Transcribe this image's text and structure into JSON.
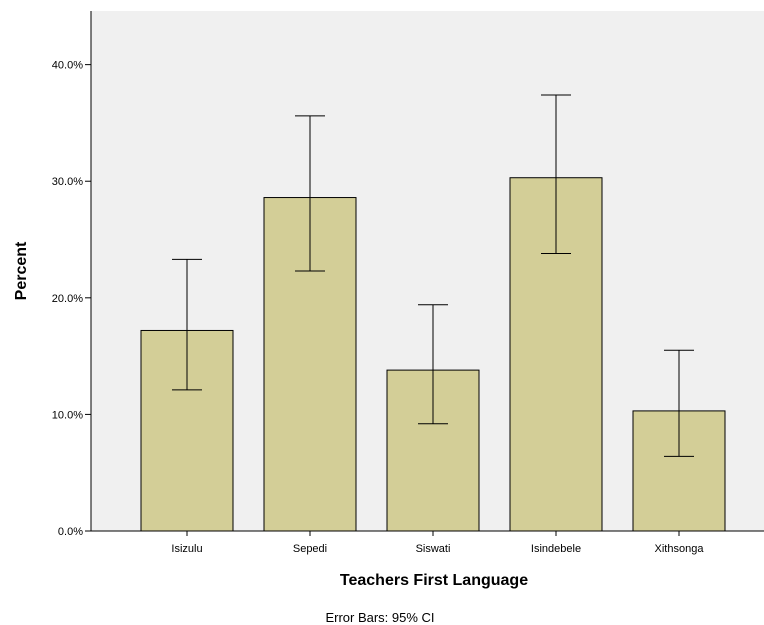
{
  "chart_data": {
    "type": "bar",
    "xlabel": "Teachers First Language",
    "ylabel": "Percent",
    "categories": [
      "Isizulu",
      "Sepedi",
      "Siswati",
      "Isindebele",
      "Xithsonga"
    ],
    "values": [
      17.2,
      28.6,
      13.8,
      30.3,
      10.3
    ],
    "error_low": [
      12.1,
      22.3,
      9.2,
      23.8,
      6.4
    ],
    "error_high": [
      23.3,
      35.6,
      19.4,
      37.4,
      15.5
    ],
    "ylim": [
      0,
      44.6
    ],
    "yticks": [
      0,
      10,
      20,
      30,
      40
    ],
    "ytick_labels": [
      "0.0%",
      "10.0%",
      "20.0%",
      "30.0%",
      "40.0%"
    ],
    "grid": false,
    "footnote": "Error Bars: 95% CI",
    "colors": {
      "bar_fill": "#d3ce97",
      "bar_stroke": "#000000",
      "plot_background": "#f0f0f0"
    }
  }
}
